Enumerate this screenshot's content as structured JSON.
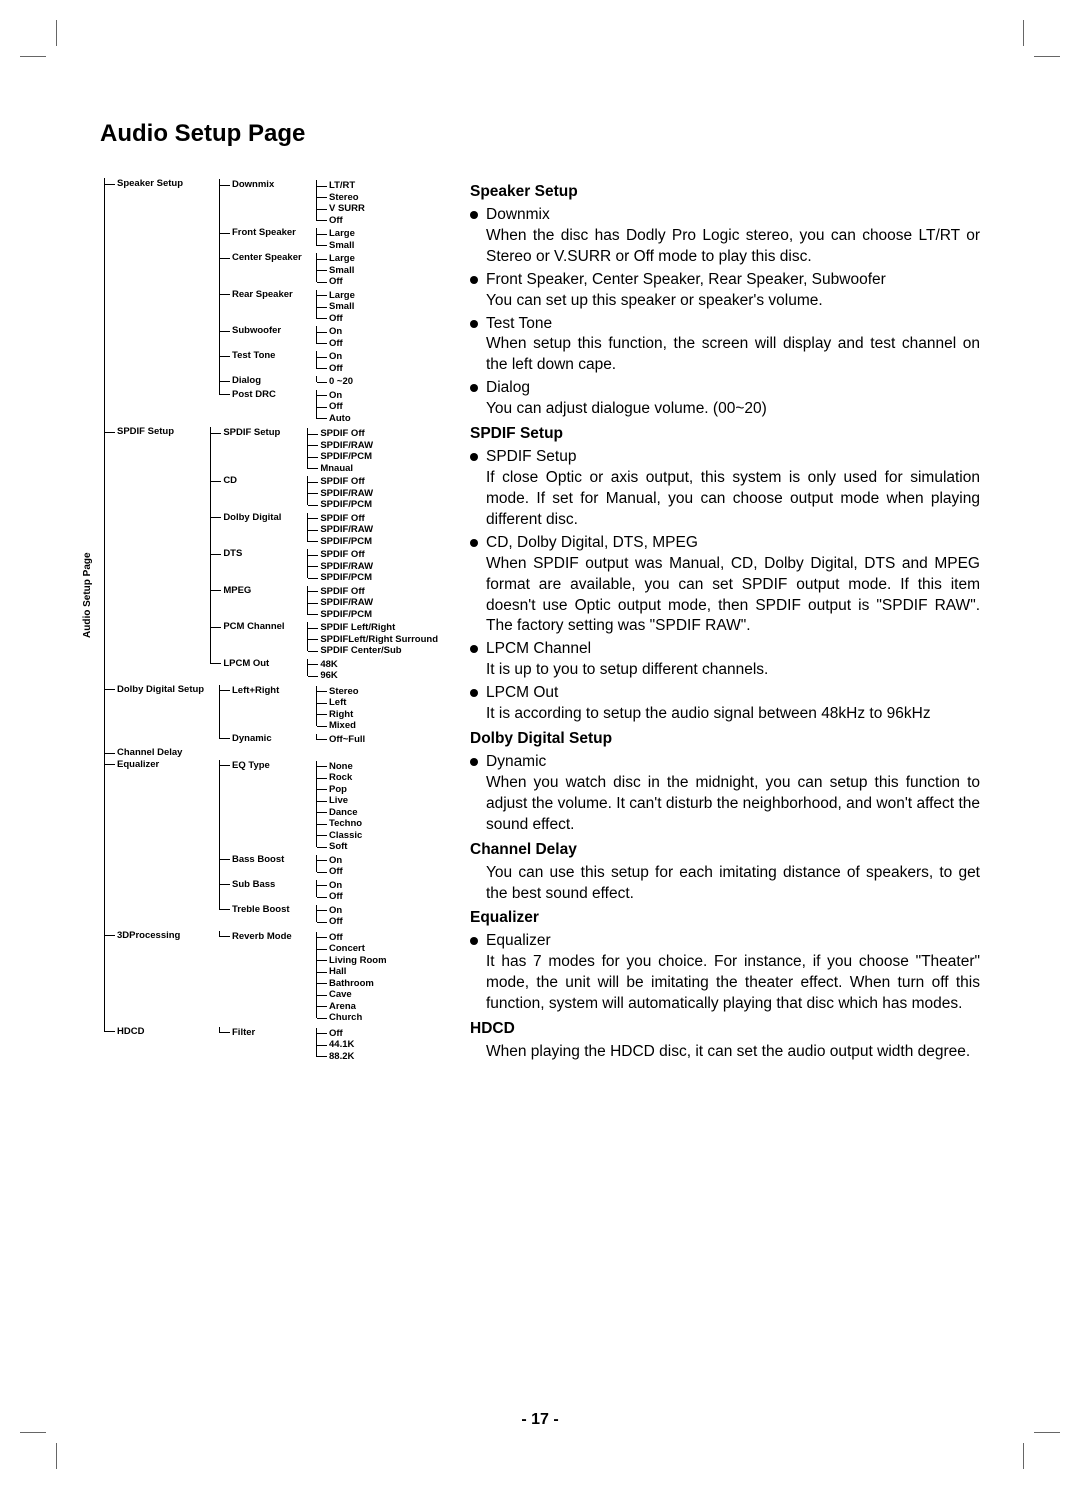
{
  "page_number": "- 17 -",
  "title": "Audio Setup Page",
  "vertical_label": "Audio Setup Page",
  "tree": [
    {
      "label": "Speaker Setup",
      "children": [
        {
          "label": "Downmix",
          "children": [
            {
              "label": "LT/RT"
            },
            {
              "label": "Stereo"
            },
            {
              "label": "V SURR"
            },
            {
              "label": "Off"
            }
          ]
        },
        {
          "label": "Front Speaker",
          "children": [
            {
              "label": "Large"
            },
            {
              "label": "Small"
            }
          ]
        },
        {
          "label": "Center Speaker",
          "children": [
            {
              "label": "Large"
            },
            {
              "label": "Small"
            },
            {
              "label": "Off"
            }
          ]
        },
        {
          "label": "Rear Speaker",
          "children": [
            {
              "label": "Large"
            },
            {
              "label": "Small"
            },
            {
              "label": "Off"
            }
          ]
        },
        {
          "label": "Subwoofer",
          "children": [
            {
              "label": "On"
            },
            {
              "label": "Off"
            }
          ]
        },
        {
          "label": "Test Tone",
          "children": [
            {
              "label": "On"
            },
            {
              "label": "Off"
            }
          ]
        },
        {
          "label": "Dialog",
          "children": [
            {
              "label": "0 ~20"
            }
          ]
        },
        {
          "label": "Post DRC",
          "children": [
            {
              "label": "On"
            },
            {
              "label": "Off"
            },
            {
              "label": "Auto"
            }
          ]
        }
      ]
    },
    {
      "label": "SPDIF Setup",
      "children": [
        {
          "label": "SPDIF Setup",
          "children": [
            {
              "label": "SPDIF Off"
            },
            {
              "label": "SPDIF/RAW"
            },
            {
              "label": "SPDIF/PCM"
            },
            {
              "label": "Mnaual"
            }
          ]
        },
        {
          "label": "CD",
          "children": [
            {
              "label": "SPDIF Off"
            },
            {
              "label": "SPDIF/RAW"
            },
            {
              "label": "SPDIF/PCM"
            }
          ]
        },
        {
          "label": "Dolby Digital",
          "children": [
            {
              "label": "SPDIF Off"
            },
            {
              "label": "SPDIF/RAW"
            },
            {
              "label": "SPDIF/PCM"
            }
          ]
        },
        {
          "label": "DTS",
          "children": [
            {
              "label": "SPDIF Off"
            },
            {
              "label": "SPDIF/RAW"
            },
            {
              "label": "SPDIF/PCM"
            }
          ]
        },
        {
          "label": "MPEG",
          "children": [
            {
              "label": "SPDIF Off"
            },
            {
              "label": "SPDIF/RAW"
            },
            {
              "label": "SPDIF/PCM"
            }
          ]
        },
        {
          "label": "PCM Channel",
          "children": [
            {
              "label": "SPDIF Left/Right"
            },
            {
              "label": "SPDIFLeft/Right Surround"
            },
            {
              "label": "SPDIF Center/Sub"
            }
          ]
        },
        {
          "label": "LPCM Out",
          "children": [
            {
              "label": "48K"
            },
            {
              "label": "96K"
            }
          ]
        }
      ]
    },
    {
      "label": "Dolby Digital Setup",
      "children": [
        {
          "label": "Left+Right",
          "children": [
            {
              "label": "Stereo"
            },
            {
              "label": "Left"
            },
            {
              "label": "Right"
            },
            {
              "label": "Mixed"
            }
          ]
        },
        {
          "label": "Dynamic",
          "children": [
            {
              "label": "Off~Full"
            }
          ]
        }
      ]
    },
    {
      "label": "Channel Delay"
    },
    {
      "label": "Equalizer",
      "children": [
        {
          "label": "EQ Type",
          "children": [
            {
              "label": "None"
            },
            {
              "label": "Rock"
            },
            {
              "label": "Pop"
            },
            {
              "label": "Live"
            },
            {
              "label": "Dance"
            },
            {
              "label": "Techno"
            },
            {
              "label": "Classic"
            },
            {
              "label": "Soft"
            }
          ]
        },
        {
          "label": "Bass Boost",
          "children": [
            {
              "label": "On"
            },
            {
              "label": "Off"
            }
          ]
        },
        {
          "label": "Sub Bass",
          "children": [
            {
              "label": "On"
            },
            {
              "label": "Off"
            }
          ]
        },
        {
          "label": "Treble Boost",
          "children": [
            {
              "label": "On"
            },
            {
              "label": "Off"
            }
          ]
        }
      ]
    },
    {
      "label": "3DProcessing",
      "children": [
        {
          "label": "Reverb Mode",
          "children": [
            {
              "label": "Off"
            },
            {
              "label": "Concert"
            },
            {
              "label": "Living Room"
            },
            {
              "label": "Hall"
            },
            {
              "label": "Bathroom"
            },
            {
              "label": "Cave"
            },
            {
              "label": "Arena"
            },
            {
              "label": "Church"
            }
          ]
        }
      ]
    },
    {
      "label": "HDCD",
      "children": [
        {
          "label": "Filter",
          "children": [
            {
              "label": "Off"
            },
            {
              "label": "44.1K"
            },
            {
              "label": "88.2K"
            }
          ]
        }
      ]
    }
  ],
  "right": {
    "sections": [
      {
        "title": "Speaker Setup",
        "bullets": [
          {
            "head": "Downmix",
            "body": "When the disc has Dodly Pro Logic stereo, you can choose LT/RT or Stereo or V.SURR or Off mode to play this disc."
          },
          {
            "head": "Front Speaker, Center Speaker, Rear Speaker, Subwoofer",
            "body": "You can set up this speaker or speaker's volume."
          },
          {
            "head": "Test Tone",
            "body": "When setup this function, the screen will display and test channel on the left down cape."
          },
          {
            "head": "Dialog",
            "body": "You can adjust dialogue volume. (00~20)"
          }
        ]
      },
      {
        "title": "SPDIF Setup",
        "bullets": [
          {
            "head": "SPDIF Setup",
            "body": "If close Optic or axis output, this system is only used for simulation mode. If set for Manual, you can choose output mode when playing different disc."
          },
          {
            "head": "CD, Dolby Digital, DTS, MPEG",
            "body": "When SPDIF output was Manual, CD, Dolby Digital, DTS and MPEG format are available, you can set SPDIF output mode. If this item doesn't use Optic output mode, then SPDIF output is \"SPDIF  RAW\". The factory setting was \"SPDIF RAW\"."
          },
          {
            "head": "LPCM Channel",
            "body": "It is up to you to setup different channels."
          },
          {
            "head": "LPCM Out",
            "body": "It is according to setup the audio signal between 48kHz to 96kHz"
          }
        ]
      },
      {
        "title": "Dolby Digital Setup",
        "bullets": [
          {
            "head": "Dynamic",
            "body": "When you watch disc in the midnight, you can setup this function to adjust the volume. It can't disturb the neighborhood, and won't affect the sound effect."
          }
        ]
      },
      {
        "title": "Channel Delay",
        "body": "You can use this setup  for each imitating distance of speakers, to get the best sound effect."
      },
      {
        "title": "Equalizer",
        "bullets": [
          {
            "head": "Equalizer",
            "body": "It has 7 modes for you choice. For instance, if you choose \"Theater\" mode, the unit will be imitating the theater effect. When turn off this function, system will automatically playing that disc which has modes."
          }
        ]
      },
      {
        "title": "HDCD",
        "body": "When playing the HDCD disc, it can set the audio  output width degree."
      }
    ]
  }
}
